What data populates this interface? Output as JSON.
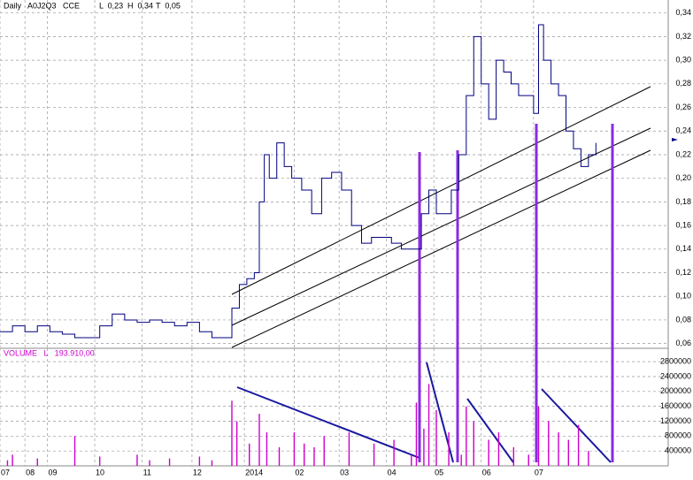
{
  "chart_data": [
    {
      "type": "line",
      "title": "Daily   A0J2Q3   CCE",
      "stats": [
        "L  0,23",
        "H  0,34",
        "T  0,05"
      ],
      "color": "#000080",
      "x": [
        0,
        5,
        10,
        15,
        20,
        25,
        30,
        35,
        40,
        45,
        50,
        55,
        60,
        65,
        70,
        75,
        80,
        85,
        90,
        93,
        96,
        99,
        102,
        104,
        106,
        108,
        111,
        114,
        117,
        121,
        125,
        129,
        133,
        137,
        141,
        145,
        149,
        153,
        157,
        161,
        165,
        169,
        172,
        175,
        178,
        181,
        184,
        187,
        190,
        193,
        196,
        199,
        202,
        205,
        208,
        211,
        214,
        216,
        218,
        221,
        224,
        227,
        230,
        233,
        236,
        239
      ],
      "values": [
        0.07,
        0.075,
        0.07,
        0.075,
        0.07,
        0.068,
        0.065,
        0.065,
        0.075,
        0.085,
        0.08,
        0.078,
        0.08,
        0.078,
        0.075,
        0.078,
        0.07,
        0.065,
        0.065,
        0.09,
        0.11,
        0.115,
        0.12,
        0.18,
        0.22,
        0.2,
        0.23,
        0.21,
        0.2,
        0.19,
        0.17,
        0.2,
        0.205,
        0.19,
        0.16,
        0.145,
        0.15,
        0.15,
        0.145,
        0.14,
        0.14,
        0.17,
        0.19,
        0.17,
        0.17,
        0.19,
        0.22,
        0.27,
        0.32,
        0.28,
        0.25,
        0.3,
        0.29,
        0.28,
        0.27,
        0.27,
        0.255,
        0.33,
        0.3,
        0.28,
        0.27,
        0.24,
        0.225,
        0.21,
        0.22,
        0.23
      ],
      "xlim": [
        0,
        268
      ],
      "ylim": [
        0.056,
        0.351
      ],
      "grid": true,
      "xticks": [
        {
          "value": 0,
          "label": "07"
        },
        {
          "value": 10,
          "label": "08"
        },
        {
          "value": 19,
          "label": "09"
        },
        {
          "value": 38,
          "label": "10"
        },
        {
          "value": 57,
          "label": "11"
        },
        {
          "value": 77,
          "label": "12"
        },
        {
          "value": 98,
          "label": "2014"
        },
        {
          "value": 118,
          "label": "02"
        },
        {
          "value": 136,
          "label": "03"
        },
        {
          "value": 155,
          "label": "04"
        },
        {
          "value": 174,
          "label": "05"
        },
        {
          "value": 193,
          "label": "06"
        },
        {
          "value": 214,
          "label": "07"
        }
      ],
      "yticks": [
        {
          "value": 0.06,
          "label": "0,06"
        },
        {
          "value": 0.08,
          "label": "0,08"
        },
        {
          "value": 0.1,
          "label": "0,10"
        },
        {
          "value": 0.12,
          "label": "0,12"
        },
        {
          "value": 0.14,
          "label": "0,14"
        },
        {
          "value": 0.16,
          "label": "0,16"
        },
        {
          "value": 0.18,
          "label": "0,18"
        },
        {
          "value": 0.2,
          "label": "0,20"
        },
        {
          "value": 0.22,
          "label": "0,22"
        },
        {
          "value": 0.24,
          "label": "0,24"
        },
        {
          "value": 0.26,
          "label": "0,26"
        },
        {
          "value": 0.28,
          "label": "0,28"
        },
        {
          "value": 0.3,
          "label": "0,30"
        },
        {
          "value": 0.32,
          "label": "0,32"
        },
        {
          "value": 0.34,
          "label": "0,34"
        }
      ]
    },
    {
      "type": "bar",
      "title": "VOLUME   L   193.910,00",
      "color": "#cc00cc",
      "x": [
        3,
        5,
        15,
        30,
        40,
        55,
        60,
        68,
        80,
        85,
        93,
        95,
        100,
        104,
        107,
        112,
        118,
        122,
        126,
        130,
        140,
        150,
        158,
        165,
        167,
        170,
        172,
        175,
        180,
        185,
        187,
        190,
        196,
        200,
        206,
        212,
        216,
        220,
        224,
        228,
        232,
        236
      ],
      "values": [
        150000,
        300000,
        200000,
        800000,
        250000,
        300000,
        150000,
        200000,
        250000,
        150000,
        1750000,
        1200000,
        600000,
        1400000,
        900000,
        500000,
        900000,
        600000,
        500000,
        800000,
        900000,
        600000,
        700000,
        300000,
        1700000,
        1000000,
        2200000,
        1500000,
        900000,
        300000,
        1600000,
        1200000,
        700000,
        900000,
        500000,
        300000,
        1600000,
        1200000,
        900000,
        700000,
        1100000,
        400000
      ],
      "xlim": [
        0,
        268
      ],
      "ylim": [
        0,
        3160000
      ],
      "yticks": [
        400000,
        800000,
        1200000,
        1600000,
        2000000,
        2400000,
        2800000
      ]
    }
  ]
}
